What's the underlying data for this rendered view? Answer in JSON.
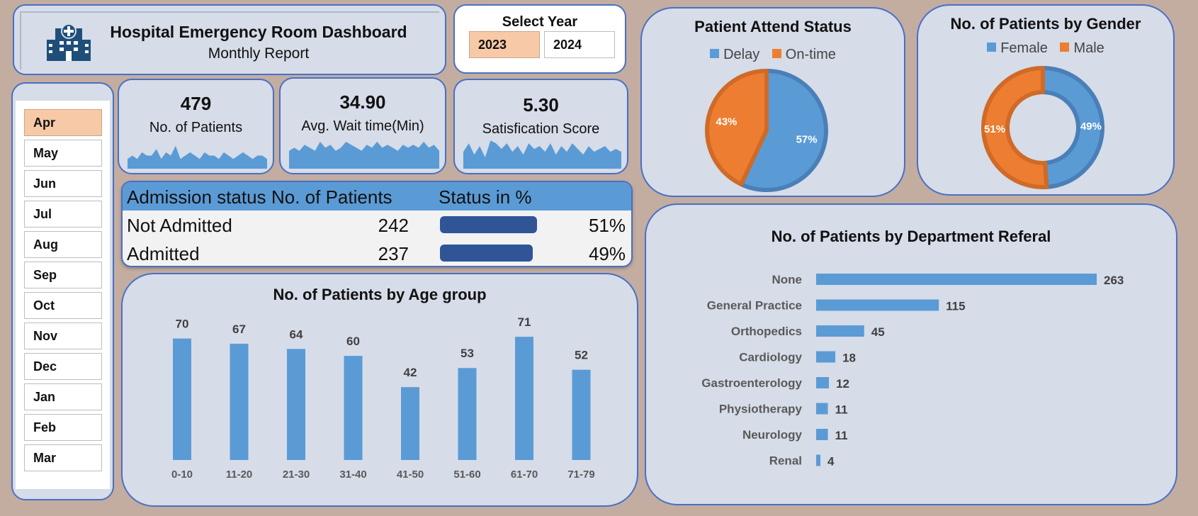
{
  "header": {
    "title": "Hospital Emergency Room Dashboard",
    "subtitle": "Monthly Report",
    "logo_icon": "hospital-icon"
  },
  "year_slicer": {
    "label": "Select Year",
    "options": [
      "2023",
      "2024"
    ],
    "selected": "2023"
  },
  "month_slicer": {
    "options": [
      "Apr",
      "May",
      "Jun",
      "Jul",
      "Aug",
      "Sep",
      "Oct",
      "Nov",
      "Dec",
      "Jan",
      "Feb",
      "Mar"
    ],
    "selected": "Apr"
  },
  "kpis": [
    {
      "value": "479",
      "label": "No. of Patients",
      "spark": [
        3,
        4,
        3,
        5,
        4,
        4,
        6,
        3,
        5,
        4,
        7,
        3,
        4,
        5,
        4,
        3,
        5,
        4,
        4,
        3,
        5,
        4,
        3,
        4,
        5,
        4,
        3,
        4,
        4,
        3
      ]
    },
    {
      "value": "34.90",
      "label": "Avg. Wait time(Min)",
      "spark": [
        6,
        7,
        6,
        8,
        7,
        6,
        9,
        7,
        8,
        6,
        7,
        9,
        8,
        7,
        6,
        8,
        7,
        9,
        7,
        8,
        7,
        6,
        8,
        7,
        8,
        7,
        9,
        7,
        8,
        6
      ]
    },
    {
      "value": "5.30",
      "label": "Satisfication Score",
      "spark": [
        6,
        9,
        5,
        8,
        4,
        10,
        9,
        7,
        9,
        6,
        8,
        5,
        9,
        7,
        8,
        6,
        9,
        5,
        8,
        6,
        9,
        7,
        5,
        8,
        6,
        7,
        8,
        6,
        7,
        6
      ]
    }
  ],
  "admission": {
    "headers": [
      "Admission status",
      "No. of Patients",
      "Status in %"
    ],
    "rows": [
      {
        "status": "Not Admitted",
        "patients": 242,
        "percent": "51%",
        "fraction": 0.51
      },
      {
        "status": "Admitted",
        "patients": 237,
        "percent": "49%",
        "fraction": 0.49
      }
    ]
  },
  "colors": {
    "blue": "#5b9bd5",
    "orange": "#ed7d31",
    "dark_blue": "#2f5597",
    "panel": "#d6dce8",
    "border": "#4a6fc4"
  },
  "chart_data": [
    {
      "type": "pie",
      "title": "Patient Attend Status",
      "categories": [
        "Delay",
        "On-time"
      ],
      "values": [
        57,
        43
      ],
      "labels": [
        "57%",
        "43%"
      ],
      "legend": "top"
    },
    {
      "type": "pie",
      "title": "No. of Patients by Gender",
      "categories": [
        "Female",
        "Male"
      ],
      "values": [
        49,
        51
      ],
      "labels": [
        "49%",
        "51%"
      ],
      "legend": "top"
    },
    {
      "type": "bar",
      "title": "No. of Patients by Age group",
      "categories": [
        "0-10",
        "11-20",
        "21-30",
        "31-40",
        "41-50",
        "51-60",
        "61-70",
        "71-79"
      ],
      "values": [
        70,
        67,
        64,
        60,
        42,
        53,
        71,
        52
      ],
      "ylim": [
        0,
        80
      ],
      "grid": false
    },
    {
      "type": "bar",
      "orientation": "horizontal",
      "title": "No. of Patients by Department Referal",
      "categories": [
        "None",
        "General Practice",
        "Orthopedics",
        "Cardiology",
        "Gastroenterology",
        "Physiotherapy",
        "Neurology",
        "Renal"
      ],
      "values": [
        263,
        115,
        45,
        18,
        12,
        11,
        11,
        4
      ],
      "xlim": [
        0,
        300
      ],
      "grid": false
    }
  ]
}
